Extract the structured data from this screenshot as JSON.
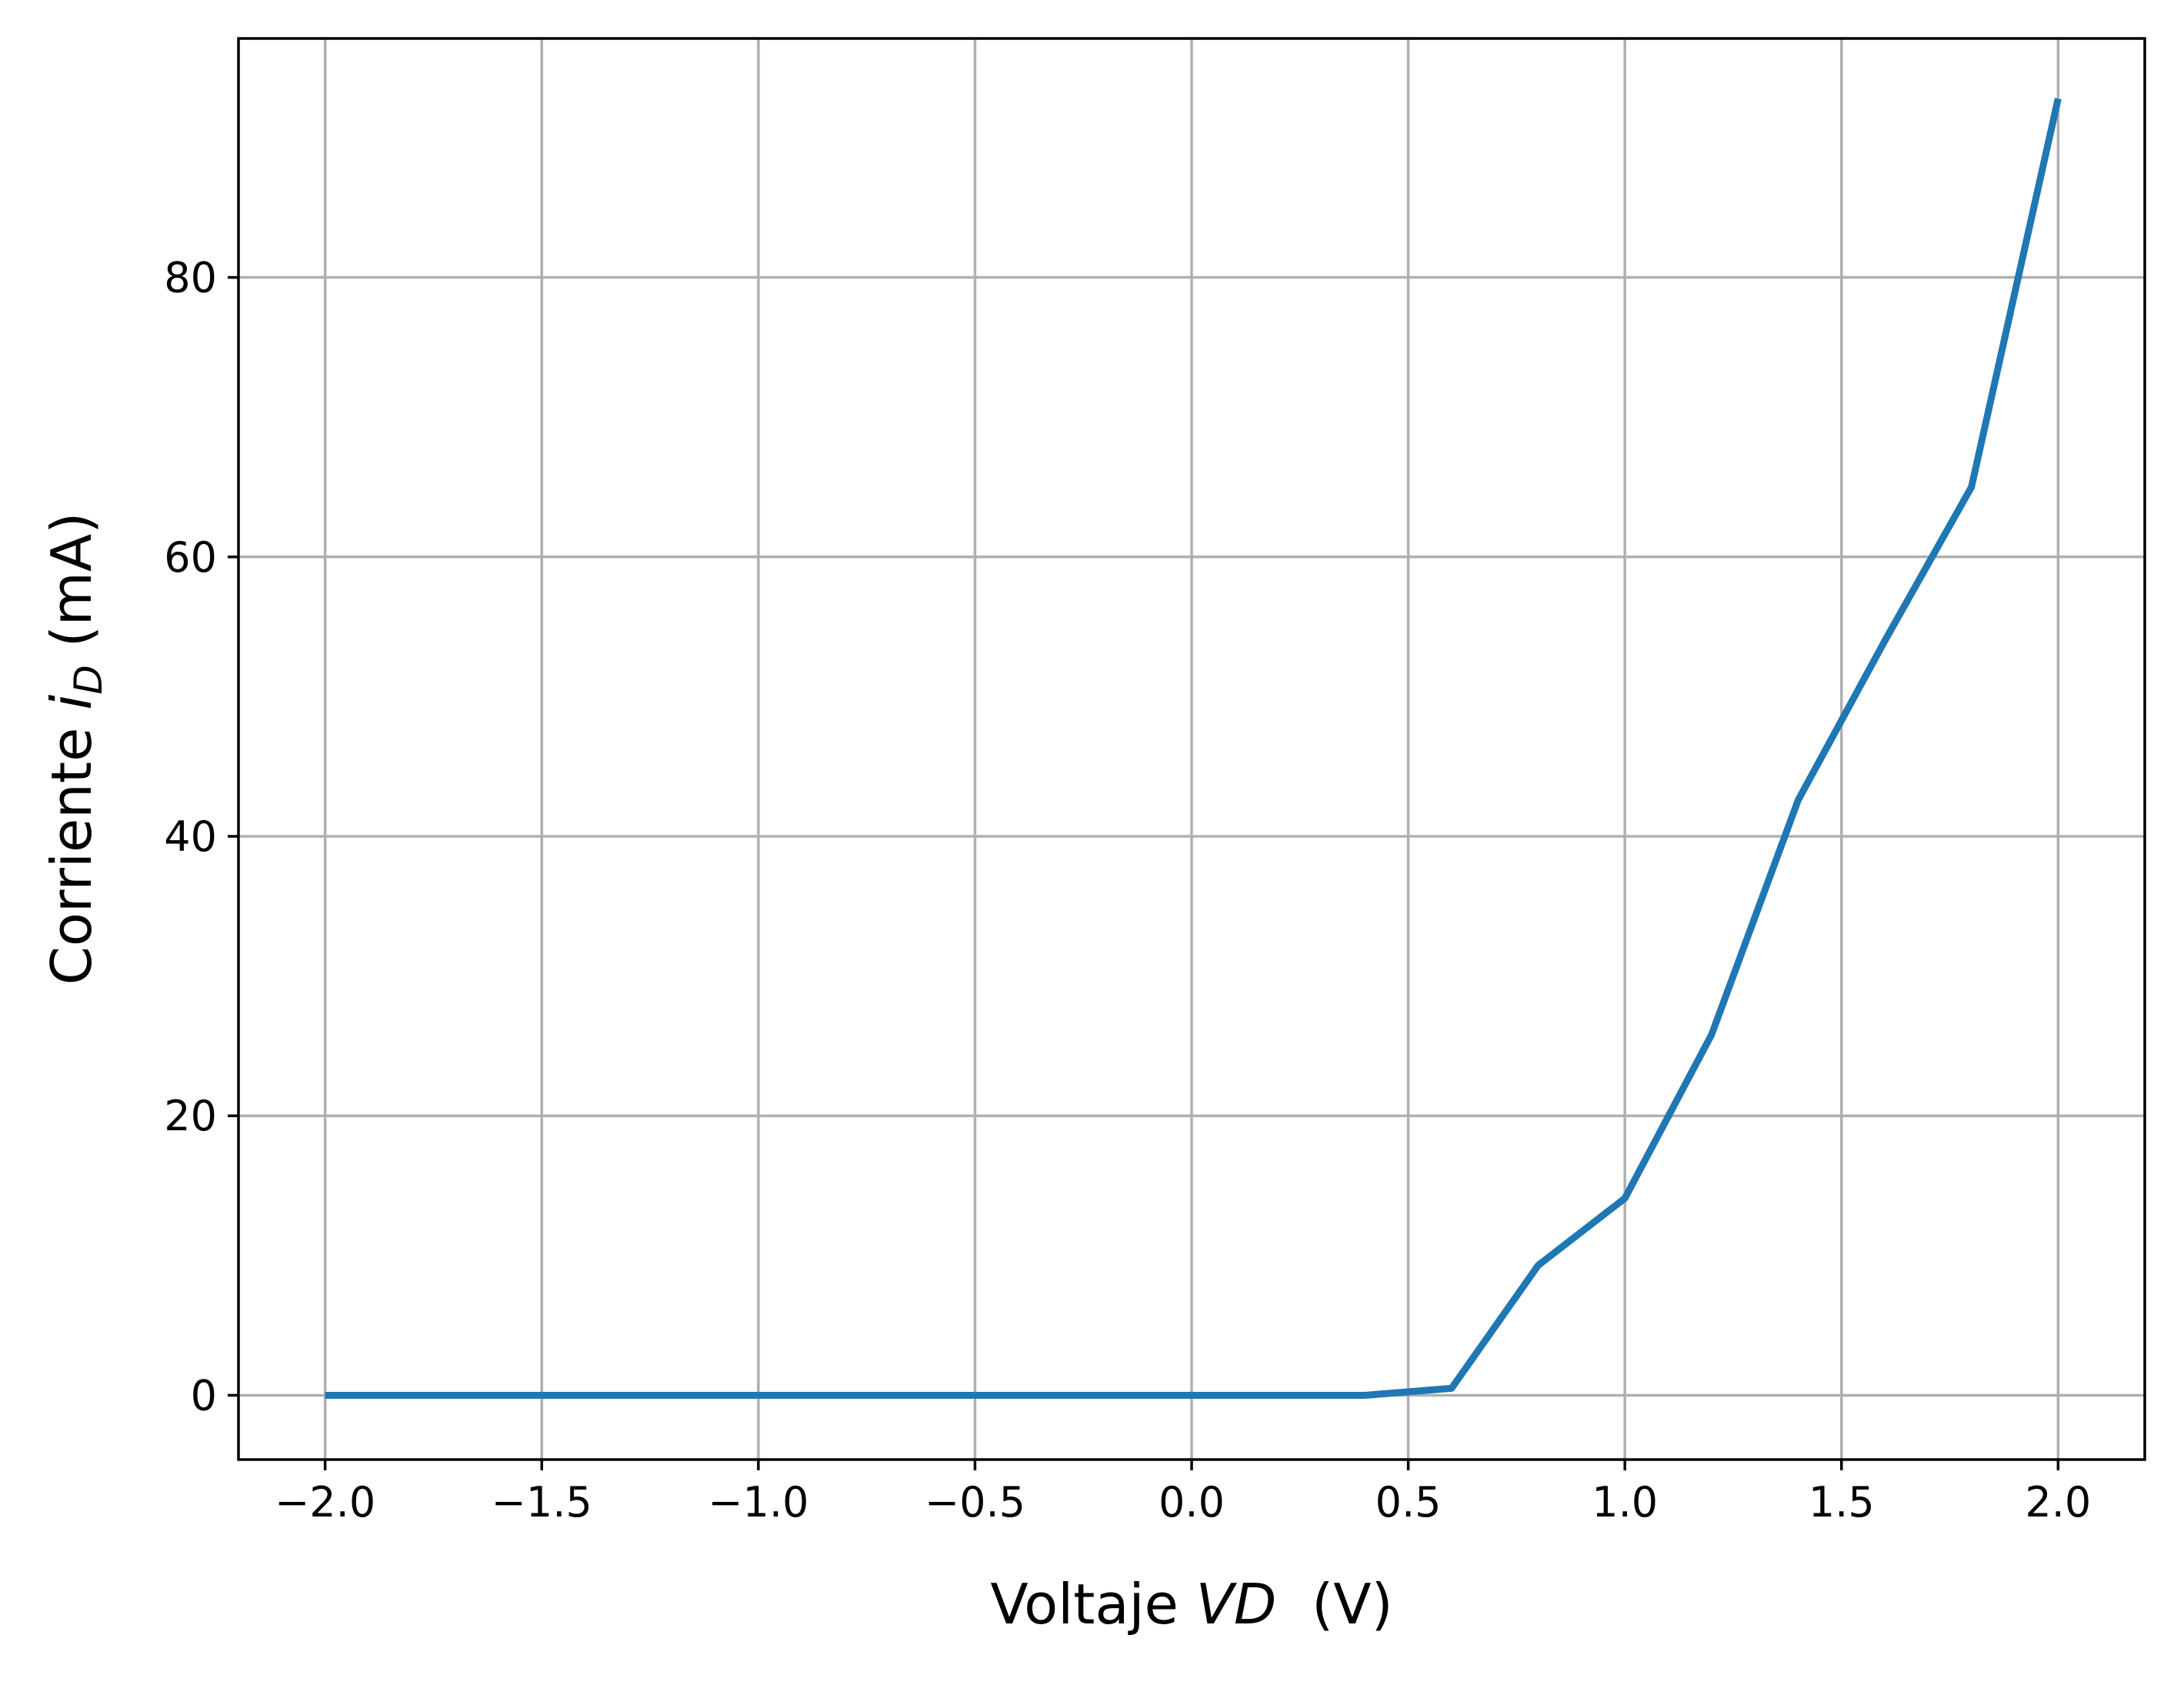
{
  "chart_data": {
    "type": "line",
    "xlabel": {
      "prefix": "Voltaje ",
      "var": "VD",
      "suffix": "  (V)"
    },
    "ylabel": {
      "prefix": "Corriente ",
      "var": "i",
      "sub": "D",
      "suffix": " (mA)"
    },
    "xlim": [
      -2.2,
      2.2
    ],
    "ylim": [
      -4.6,
      97.1
    ],
    "xticks": [
      -2.0,
      -1.5,
      -1.0,
      -0.5,
      0.0,
      0.5,
      1.0,
      1.5,
      2.0
    ],
    "xtick_labels": [
      "−2.0",
      "−1.5",
      "−1.0",
      "−0.5",
      "0.0",
      "0.5",
      "1.0",
      "1.5",
      "2.0"
    ],
    "yticks": [
      0,
      20,
      40,
      60,
      80
    ],
    "ytick_labels": [
      "0",
      "20",
      "40",
      "60",
      "80"
    ],
    "grid": true,
    "series": [
      {
        "color": "#1f77b4",
        "x": [
          -2.0,
          -1.8,
          -1.6,
          -1.4,
          -1.2,
          -1.0,
          -0.8,
          -0.6,
          -0.4,
          -0.2,
          0.0,
          0.2,
          0.4,
          0.6,
          0.8,
          1.0,
          1.2,
          1.4,
          1.6,
          1.8,
          2.0
        ],
        "y": [
          0,
          0,
          0,
          0,
          0,
          0,
          0,
          0,
          0,
          0,
          0,
          0,
          0,
          0.5,
          9.3,
          14.1,
          25.8,
          42.6,
          54.0,
          65.0,
          92.8
        ]
      }
    ]
  }
}
